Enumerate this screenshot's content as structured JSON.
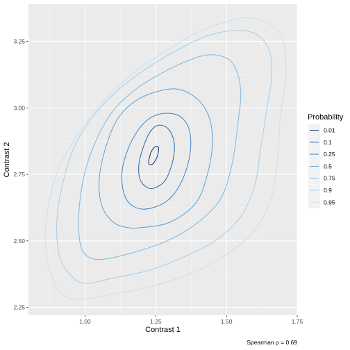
{
  "chart_data": {
    "type": "contour",
    "xlabel": "Contrast 1",
    "ylabel": "Contrast 2",
    "xlim": [
      0.8,
      1.75
    ],
    "ylim": [
      2.22,
      3.39
    ],
    "x_ticks": [
      1.0,
      1.25,
      1.5,
      1.75
    ],
    "x_tick_labels": [
      "1.00",
      "1.25",
      "1.50",
      "1.75"
    ],
    "y_ticks": [
      2.25,
      2.5,
      2.75,
      3.0,
      3.25
    ],
    "y_tick_labels": [
      "2.25",
      "2.50",
      "2.75",
      "3.00",
      "3.25"
    ],
    "grid": true,
    "legend": {
      "title": "Probability",
      "position": "right",
      "entries": [
        "0.01",
        "0.1",
        "0.25",
        "0.5",
        "0.75",
        "0.9",
        "0.95"
      ]
    },
    "caption": "Spearman ρ = 0.69",
    "series": [
      {
        "name": "0.01",
        "color": "#08306b",
        "points": [
          [
            1.225,
            2.79
          ],
          [
            1.232,
            2.83
          ],
          [
            1.247,
            2.853
          ],
          [
            1.26,
            2.85
          ],
          [
            1.255,
            2.817
          ],
          [
            1.24,
            2.79
          ],
          [
            1.225,
            2.79
          ]
        ]
      },
      {
        "name": "0.1",
        "color": "#2765a8",
        "points": [
          [
            1.25,
            2.7
          ],
          [
            1.285,
            2.73
          ],
          [
            1.31,
            2.8
          ],
          [
            1.315,
            2.87
          ],
          [
            1.295,
            2.92
          ],
          [
            1.26,
            2.935
          ],
          [
            1.23,
            2.91
          ],
          [
            1.205,
            2.85
          ],
          [
            1.19,
            2.785
          ],
          [
            1.195,
            2.73
          ],
          [
            1.22,
            2.7
          ],
          [
            1.25,
            2.7
          ]
        ]
      },
      {
        "name": "0.25",
        "color": "#3d83c4",
        "points": [
          [
            1.22,
            2.62
          ],
          [
            1.29,
            2.65
          ],
          [
            1.34,
            2.72
          ],
          [
            1.37,
            2.82
          ],
          [
            1.37,
            2.91
          ],
          [
            1.34,
            2.965
          ],
          [
            1.29,
            2.98
          ],
          [
            1.235,
            2.965
          ],
          [
            1.19,
            2.92
          ],
          [
            1.15,
            2.84
          ],
          [
            1.13,
            2.75
          ],
          [
            1.14,
            2.67
          ],
          [
            1.17,
            2.63
          ],
          [
            1.22,
            2.62
          ]
        ]
      },
      {
        "name": "0.5",
        "color": "#5aa0d5",
        "points": [
          [
            1.2,
            2.55
          ],
          [
            1.3,
            2.57
          ],
          [
            1.39,
            2.64
          ],
          [
            1.43,
            2.74
          ],
          [
            1.45,
            2.86
          ],
          [
            1.44,
            2.96
          ],
          [
            1.4,
            3.03
          ],
          [
            1.33,
            3.07
          ],
          [
            1.25,
            3.06
          ],
          [
            1.17,
            3.02
          ],
          [
            1.11,
            2.95
          ],
          [
            1.07,
            2.84
          ],
          [
            1.05,
            2.73
          ],
          [
            1.06,
            2.63
          ],
          [
            1.1,
            2.57
          ],
          [
            1.15,
            2.55
          ],
          [
            1.2,
            2.55
          ]
        ]
      },
      {
        "name": "0.75",
        "color": "#7cb8e2",
        "points": [
          [
            1.05,
            2.43
          ],
          [
            1.15,
            2.45
          ],
          [
            1.29,
            2.5
          ],
          [
            1.4,
            2.57
          ],
          [
            1.48,
            2.66
          ],
          [
            1.52,
            2.79
          ],
          [
            1.54,
            2.94
          ],
          [
            1.55,
            3.07
          ],
          [
            1.52,
            3.17
          ],
          [
            1.45,
            3.2
          ],
          [
            1.37,
            3.18
          ],
          [
            1.27,
            3.13
          ],
          [
            1.18,
            3.07
          ],
          [
            1.1,
            2.99
          ],
          [
            1.04,
            2.88
          ],
          [
            1.0,
            2.76
          ],
          [
            0.98,
            2.63
          ],
          [
            0.98,
            2.51
          ],
          [
            1.0,
            2.45
          ],
          [
            1.05,
            2.43
          ]
        ]
      },
      {
        "name": "0.9",
        "color": "#a3cdec",
        "points": [
          [
            1.0,
            2.34
          ],
          [
            1.1,
            2.36
          ],
          [
            1.23,
            2.39
          ],
          [
            1.35,
            2.44
          ],
          [
            1.46,
            2.5
          ],
          [
            1.55,
            2.59
          ],
          [
            1.6,
            2.71
          ],
          [
            1.62,
            2.84
          ],
          [
            1.64,
            2.98
          ],
          [
            1.66,
            3.12
          ],
          [
            1.65,
            3.22
          ],
          [
            1.6,
            3.28
          ],
          [
            1.52,
            3.29
          ],
          [
            1.43,
            3.27
          ],
          [
            1.33,
            3.22
          ],
          [
            1.22,
            3.15
          ],
          [
            1.12,
            3.07
          ],
          [
            1.03,
            2.97
          ],
          [
            0.96,
            2.85
          ],
          [
            0.92,
            2.71
          ],
          [
            0.9,
            2.57
          ],
          [
            0.91,
            2.44
          ],
          [
            0.95,
            2.37
          ],
          [
            1.0,
            2.34
          ]
        ]
      },
      {
        "name": "0.95",
        "color": "#c7dff1",
        "points": [
          [
            0.98,
            2.28
          ],
          [
            1.1,
            2.3
          ],
          [
            1.24,
            2.33
          ],
          [
            1.38,
            2.38
          ],
          [
            1.5,
            2.45
          ],
          [
            1.6,
            2.54
          ],
          [
            1.66,
            2.67
          ],
          [
            1.68,
            2.81
          ],
          [
            1.69,
            2.96
          ],
          [
            1.71,
            3.12
          ],
          [
            1.7,
            3.25
          ],
          [
            1.66,
            3.31
          ],
          [
            1.58,
            3.34
          ],
          [
            1.49,
            3.32
          ],
          [
            1.39,
            3.28
          ],
          [
            1.28,
            3.21
          ],
          [
            1.17,
            3.13
          ],
          [
            1.07,
            3.03
          ],
          [
            0.98,
            2.91
          ],
          [
            0.91,
            2.78
          ],
          [
            0.87,
            2.63
          ],
          [
            0.86,
            2.49
          ],
          [
            0.88,
            2.37
          ],
          [
            0.92,
            2.3
          ],
          [
            0.98,
            2.28
          ]
        ]
      }
    ]
  }
}
